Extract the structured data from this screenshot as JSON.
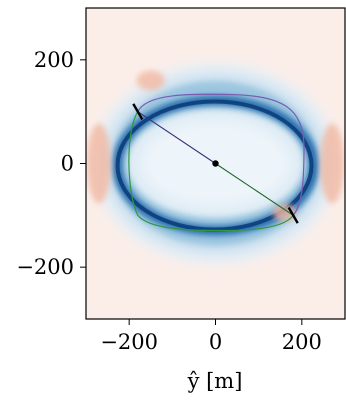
{
  "chart_data": {
    "type": "heatmap",
    "title": "",
    "xlabel": "ŷ [m]",
    "ylabel": "",
    "xlim": [
      -300,
      300
    ],
    "ylim": [
      -300,
      300
    ],
    "x_ticks": [
      {
        "value": -200,
        "label": "−200"
      },
      {
        "value": 0,
        "label": "0"
      },
      {
        "value": 200,
        "label": "200"
      }
    ],
    "y_ticks": [
      {
        "value": 200,
        "label": "200"
      },
      {
        "value": 0,
        "label": "0"
      },
      {
        "value": -200,
        "label": "−200"
      }
    ],
    "grid": false,
    "background_color": "#fbeee9",
    "colormap": "RdBu_r",
    "path": {
      "center": [
        0,
        0
      ],
      "start": [
        -180,
        100
      ],
      "end": [
        180,
        -100
      ],
      "lines": [
        {
          "name": "",
          "color": "#3a2f78",
          "from": [
            0,
            0
          ],
          "to": [
            -180,
            100
          ]
        },
        {
          "name": "",
          "color": "#1f6a2a",
          "from": [
            0,
            0
          ],
          "to": [
            180,
            -100
          ]
        }
      ],
      "upper_arc_color": "#7a5cb0",
      "lower_arc_color": "#2e9a3a"
    }
  }
}
